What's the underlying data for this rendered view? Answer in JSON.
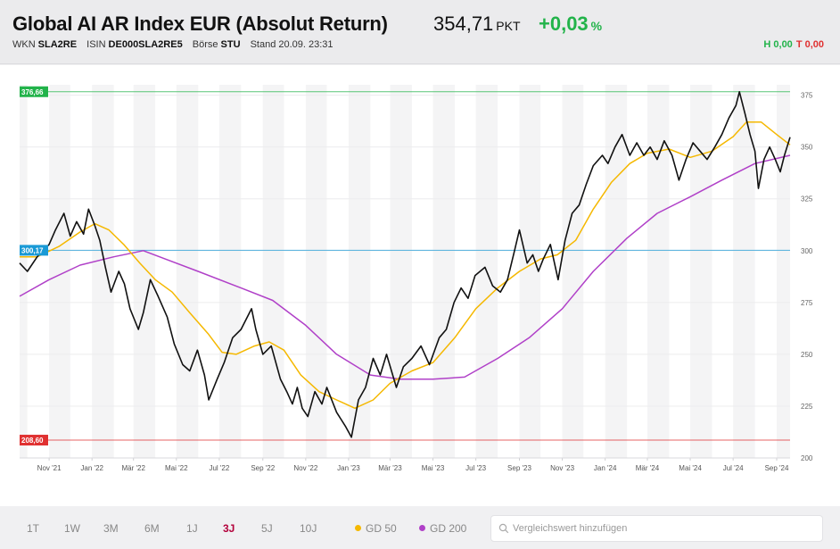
{
  "header": {
    "title": "Global AI AR Index EUR (Absolut Return)",
    "price": "354,71",
    "price_unit": "PKT",
    "change": "+0,03",
    "change_unit": "%",
    "wkn_label": "WKN",
    "wkn": "SLA2RE",
    "isin_label": "ISIN",
    "isin": "DE000SLA2RE5",
    "exchange_label": "Börse",
    "exchange": "STU",
    "stand": "Stand 20.09. 23:31",
    "high": "H 0,00",
    "low": "T 0,00"
  },
  "colors": {
    "price_line": "#111111",
    "gd50": "#f5b800",
    "gd200": "#b040c8",
    "level_high": "#22b34a",
    "level_mid": "#1a9ad6",
    "level_low": "#e03131",
    "positive": "#22b34a",
    "negative": "#e03131",
    "active_range": "#b3003b"
  },
  "footer": {
    "ranges": [
      "1T",
      "1W",
      "3M",
      "6M",
      "1J",
      "3J",
      "5J",
      "10J"
    ],
    "active_range": "3J",
    "legend": [
      {
        "label": "GD 50",
        "color": "#f5b800"
      },
      {
        "label": "GD 200",
        "color": "#b040c8"
      }
    ],
    "search_placeholder": "Vergleichswert hinzufügen"
  },
  "chart_data": {
    "type": "line",
    "title": "",
    "xlabel": "",
    "ylabel": "",
    "x_range": [
      "2021-09-20",
      "2024-09-20"
    ],
    "ylim": [
      200,
      380
    ],
    "yticks": [
      200,
      225,
      250,
      275,
      300,
      325,
      350,
      375
    ],
    "xticks": [
      {
        "date": "2021-11-01",
        "label": "Nov '21"
      },
      {
        "date": "2022-01-01",
        "label": "Jan '22"
      },
      {
        "date": "2022-03-01",
        "label": "Mär '22"
      },
      {
        "date": "2022-05-01",
        "label": "Mai '22"
      },
      {
        "date": "2022-07-01",
        "label": "Jul '22"
      },
      {
        "date": "2022-09-01",
        "label": "Sep '22"
      },
      {
        "date": "2022-11-01",
        "label": "Nov '22"
      },
      {
        "date": "2023-01-01",
        "label": "Jan '23"
      },
      {
        "date": "2023-03-01",
        "label": "Mär '23"
      },
      {
        "date": "2023-05-01",
        "label": "Mai '23"
      },
      {
        "date": "2023-07-01",
        "label": "Jul '23"
      },
      {
        "date": "2023-09-01",
        "label": "Sep '23"
      },
      {
        "date": "2023-11-01",
        "label": "Nov '23"
      },
      {
        "date": "2024-01-01",
        "label": "Jan '24"
      },
      {
        "date": "2024-03-01",
        "label": "Mär '24"
      },
      {
        "date": "2024-05-01",
        "label": "Mai '24"
      },
      {
        "date": "2024-07-01",
        "label": "Jul '24"
      },
      {
        "date": "2024-09-01",
        "label": "Sep '24"
      }
    ],
    "grid": true,
    "levels": [
      {
        "value": 376.66,
        "label": "376,66",
        "color": "#22b34a"
      },
      {
        "value": 300.17,
        "label": "300,17",
        "color": "#1a9ad6"
      },
      {
        "value": 208.6,
        "label": "208,60",
        "color": "#e03131"
      }
    ],
    "series": [
      {
        "name": "",
        "color": "#111111",
        "points": [
          [
            "2021-09-20",
            294
          ],
          [
            "2021-10-01",
            290
          ],
          [
            "2021-10-15",
            297
          ],
          [
            "2021-11-01",
            303
          ],
          [
            "2021-11-10",
            310
          ],
          [
            "2021-11-22",
            318
          ],
          [
            "2021-12-01",
            307
          ],
          [
            "2021-12-10",
            314
          ],
          [
            "2021-12-20",
            308
          ],
          [
            "2021-12-27",
            320
          ],
          [
            "2022-01-05",
            312
          ],
          [
            "2022-01-12",
            305
          ],
          [
            "2022-01-20",
            292
          ],
          [
            "2022-01-28",
            280
          ],
          [
            "2022-02-08",
            290
          ],
          [
            "2022-02-16",
            284
          ],
          [
            "2022-02-24",
            272
          ],
          [
            "2022-03-08",
            262
          ],
          [
            "2022-03-15",
            270
          ],
          [
            "2022-03-25",
            286
          ],
          [
            "2022-04-05",
            278
          ],
          [
            "2022-04-18",
            268
          ],
          [
            "2022-04-28",
            255
          ],
          [
            "2022-05-10",
            245
          ],
          [
            "2022-05-20",
            242
          ],
          [
            "2022-05-31",
            252
          ],
          [
            "2022-06-10",
            240
          ],
          [
            "2022-06-16",
            228
          ],
          [
            "2022-06-28",
            238
          ],
          [
            "2022-07-08",
            246
          ],
          [
            "2022-07-20",
            258
          ],
          [
            "2022-08-01",
            262
          ],
          [
            "2022-08-16",
            272
          ],
          [
            "2022-08-22",
            262
          ],
          [
            "2022-09-01",
            250
          ],
          [
            "2022-09-13",
            254
          ],
          [
            "2022-09-26",
            238
          ],
          [
            "2022-10-05",
            232
          ],
          [
            "2022-10-13",
            226
          ],
          [
            "2022-10-20",
            234
          ],
          [
            "2022-10-27",
            224
          ],
          [
            "2022-11-04",
            220
          ],
          [
            "2022-11-14",
            232
          ],
          [
            "2022-11-24",
            226
          ],
          [
            "2022-12-01",
            234
          ],
          [
            "2022-12-15",
            222
          ],
          [
            "2022-12-28",
            215
          ],
          [
            "2023-01-05",
            210
          ],
          [
            "2023-01-15",
            228
          ],
          [
            "2023-01-25",
            234
          ],
          [
            "2023-02-05",
            248
          ],
          [
            "2023-02-15",
            240
          ],
          [
            "2023-02-24",
            250
          ],
          [
            "2023-03-10",
            234
          ],
          [
            "2023-03-20",
            244
          ],
          [
            "2023-04-01",
            248
          ],
          [
            "2023-04-14",
            254
          ],
          [
            "2023-04-26",
            245
          ],
          [
            "2023-05-10",
            258
          ],
          [
            "2023-05-20",
            262
          ],
          [
            "2023-05-31",
            275
          ],
          [
            "2023-06-10",
            282
          ],
          [
            "2023-06-20",
            277
          ],
          [
            "2023-06-30",
            288
          ],
          [
            "2023-07-14",
            292
          ],
          [
            "2023-07-25",
            283
          ],
          [
            "2023-08-05",
            280
          ],
          [
            "2023-08-15",
            286
          ],
          [
            "2023-08-25",
            300
          ],
          [
            "2023-09-01",
            310
          ],
          [
            "2023-09-12",
            294
          ],
          [
            "2023-09-20",
            298
          ],
          [
            "2023-09-28",
            290
          ],
          [
            "2023-10-05",
            296
          ],
          [
            "2023-10-15",
            303
          ],
          [
            "2023-10-26",
            286
          ],
          [
            "2023-11-05",
            305
          ],
          [
            "2023-11-15",
            318
          ],
          [
            "2023-11-25",
            322
          ],
          [
            "2023-12-05",
            332
          ],
          [
            "2023-12-15",
            341
          ],
          [
            "2023-12-28",
            346
          ],
          [
            "2024-01-05",
            342
          ],
          [
            "2024-01-15",
            350
          ],
          [
            "2024-01-25",
            356
          ],
          [
            "2024-02-05",
            346
          ],
          [
            "2024-02-15",
            352
          ],
          [
            "2024-02-25",
            346
          ],
          [
            "2024-03-05",
            350
          ],
          [
            "2024-03-15",
            344
          ],
          [
            "2024-03-25",
            353
          ],
          [
            "2024-04-05",
            346
          ],
          [
            "2024-04-15",
            334
          ],
          [
            "2024-04-25",
            344
          ],
          [
            "2024-05-05",
            352
          ],
          [
            "2024-05-15",
            348
          ],
          [
            "2024-05-25",
            344
          ],
          [
            "2024-06-05",
            350
          ],
          [
            "2024-06-15",
            356
          ],
          [
            "2024-06-25",
            364
          ],
          [
            "2024-07-05",
            370
          ],
          [
            "2024-07-10",
            376.66
          ],
          [
            "2024-07-18",
            366
          ],
          [
            "2024-07-25",
            356
          ],
          [
            "2024-08-01",
            348
          ],
          [
            "2024-08-06",
            330
          ],
          [
            "2024-08-14",
            344
          ],
          [
            "2024-08-22",
            350
          ],
          [
            "2024-08-30",
            344
          ],
          [
            "2024-09-06",
            338
          ],
          [
            "2024-09-12",
            346
          ],
          [
            "2024-09-20",
            354.71
          ]
        ]
      },
      {
        "name": "GD 50",
        "color": "#f5b800",
        "points": [
          [
            "2021-09-20",
            297
          ],
          [
            "2021-10-15",
            297
          ],
          [
            "2021-11-15",
            302
          ],
          [
            "2021-12-15",
            309
          ],
          [
            "2022-01-05",
            313
          ],
          [
            "2022-01-25",
            310
          ],
          [
            "2022-02-15",
            303
          ],
          [
            "2022-03-10",
            294
          ],
          [
            "2022-04-01",
            286
          ],
          [
            "2022-04-25",
            280
          ],
          [
            "2022-05-20",
            270
          ],
          [
            "2022-06-15",
            260
          ],
          [
            "2022-07-05",
            251
          ],
          [
            "2022-07-25",
            250
          ],
          [
            "2022-08-20",
            254
          ],
          [
            "2022-09-10",
            256
          ],
          [
            "2022-10-01",
            252
          ],
          [
            "2022-10-25",
            240
          ],
          [
            "2022-11-20",
            232
          ],
          [
            "2022-12-15",
            228
          ],
          [
            "2023-01-10",
            224
          ],
          [
            "2023-02-05",
            228
          ],
          [
            "2023-03-01",
            236
          ],
          [
            "2023-04-01",
            242
          ],
          [
            "2023-05-01",
            246
          ],
          [
            "2023-06-01",
            258
          ],
          [
            "2023-07-01",
            272
          ],
          [
            "2023-08-01",
            282
          ],
          [
            "2023-09-01",
            290
          ],
          [
            "2023-10-01",
            296
          ],
          [
            "2023-10-25",
            298
          ],
          [
            "2023-11-20",
            305
          ],
          [
            "2023-12-15",
            320
          ],
          [
            "2024-01-10",
            333
          ],
          [
            "2024-02-05",
            342
          ],
          [
            "2024-03-01",
            347
          ],
          [
            "2024-04-01",
            349
          ],
          [
            "2024-05-01",
            345
          ],
          [
            "2024-06-01",
            348
          ],
          [
            "2024-07-01",
            355
          ],
          [
            "2024-07-20",
            362
          ],
          [
            "2024-08-10",
            362
          ],
          [
            "2024-09-01",
            356
          ],
          [
            "2024-09-20",
            351
          ]
        ]
      },
      {
        "name": "GD 200",
        "color": "#b040c8",
        "points": [
          [
            "2021-09-20",
            278
          ],
          [
            "2021-11-01",
            286
          ],
          [
            "2021-12-15",
            293
          ],
          [
            "2022-02-01",
            297
          ],
          [
            "2022-03-15",
            300
          ],
          [
            "2022-04-15",
            296
          ],
          [
            "2022-06-01",
            290
          ],
          [
            "2022-08-01",
            282
          ],
          [
            "2022-09-15",
            276
          ],
          [
            "2022-11-01",
            264
          ],
          [
            "2022-12-15",
            250
          ],
          [
            "2023-02-01",
            240
          ],
          [
            "2023-03-15",
            238
          ],
          [
            "2023-05-01",
            238
          ],
          [
            "2023-06-15",
            239
          ],
          [
            "2023-08-01",
            248
          ],
          [
            "2023-09-15",
            258
          ],
          [
            "2023-11-01",
            272
          ],
          [
            "2023-12-15",
            290
          ],
          [
            "2024-02-01",
            306
          ],
          [
            "2024-03-15",
            318
          ],
          [
            "2024-05-01",
            326
          ],
          [
            "2024-06-15",
            334
          ],
          [
            "2024-08-01",
            342
          ],
          [
            "2024-09-20",
            346
          ]
        ]
      }
    ]
  }
}
